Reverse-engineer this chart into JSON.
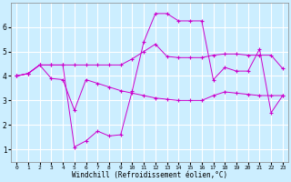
{
  "xlabel": "Windchill (Refroidissement éolien,°C)",
  "background_color": "#cceeff",
  "line_color": "#cc00cc",
  "xlim": [
    -0.5,
    23.5
  ],
  "ylim": [
    0.5,
    7.0
  ],
  "xticks": [
    0,
    1,
    2,
    3,
    4,
    5,
    6,
    7,
    8,
    9,
    10,
    11,
    12,
    13,
    14,
    15,
    16,
    17,
    18,
    19,
    20,
    21,
    22,
    23
  ],
  "yticks": [
    1,
    2,
    3,
    4,
    5,
    6
  ],
  "grid_color": "#ffffff",
  "lines": [
    {
      "x": [
        0,
        1,
        2,
        3,
        4,
        5,
        6,
        7,
        8,
        9,
        10,
        11,
        12,
        13,
        14,
        15,
        16,
        17,
        18,
        19,
        20,
        21,
        22,
        23
      ],
      "y": [
        4.0,
        4.1,
        4.45,
        3.9,
        3.85,
        2.6,
        3.85,
        3.7,
        3.55,
        3.4,
        3.3,
        3.2,
        3.1,
        3.05,
        3.0,
        3.0,
        3.0,
        3.2,
        3.35,
        3.3,
        3.25,
        3.2,
        3.2,
        3.2
      ]
    },
    {
      "x": [
        0,
        1,
        2,
        3,
        4,
        5,
        6,
        7,
        8,
        9,
        10,
        11,
        12,
        13,
        14,
        15,
        16,
        17,
        18,
        19,
        20,
        21,
        22,
        23
      ],
      "y": [
        4.0,
        4.1,
        4.45,
        4.45,
        4.45,
        4.45,
        4.45,
        4.45,
        4.45,
        4.45,
        4.7,
        5.0,
        5.3,
        4.8,
        4.75,
        4.75,
        4.75,
        4.85,
        4.9,
        4.9,
        4.85,
        4.85,
        4.85,
        4.3
      ]
    },
    {
      "x": [
        0,
        1,
        2,
        3,
        4,
        5,
        6,
        7,
        8,
        9,
        10,
        11,
        12,
        13,
        14,
        15,
        16,
        17,
        18,
        19,
        20,
        21,
        22,
        23
      ],
      "y": [
        4.0,
        4.1,
        4.45,
        4.45,
        4.45,
        1.1,
        1.35,
        1.75,
        1.55,
        1.6,
        3.4,
        5.4,
        6.55,
        6.55,
        6.25,
        6.25,
        6.25,
        3.85,
        4.35,
        4.2,
        4.2,
        5.1,
        2.5,
        3.2
      ]
    }
  ]
}
